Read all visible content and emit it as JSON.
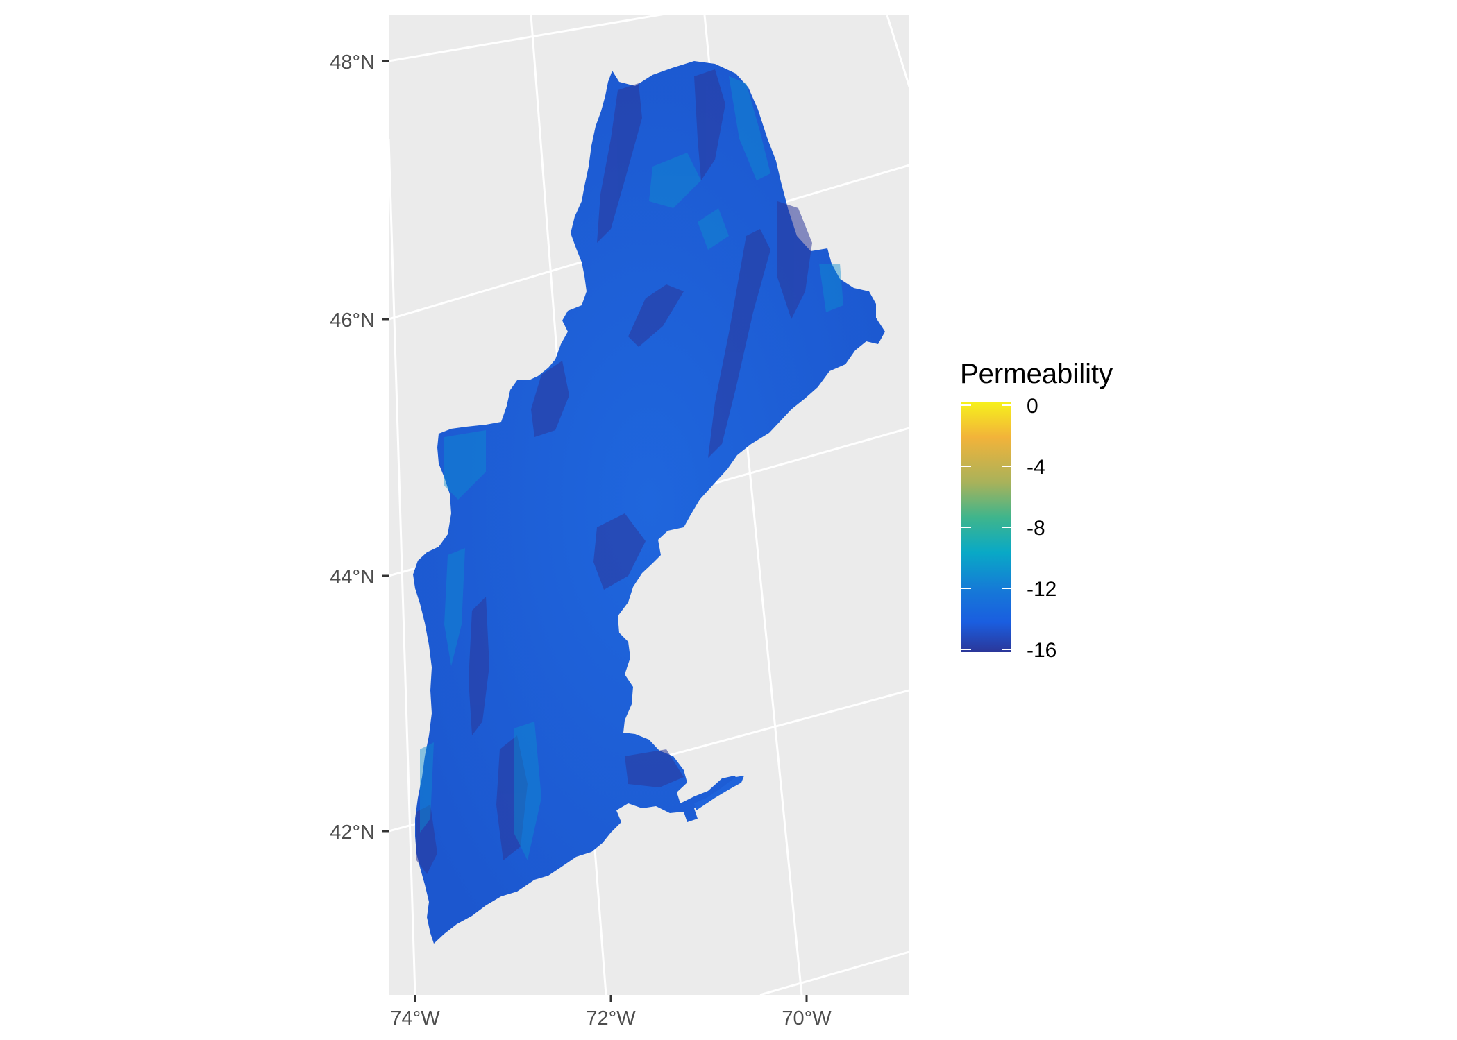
{
  "map": {
    "background": "#ebebeb",
    "gridline_color": "#ffffff",
    "land_fill": "#1f63db",
    "latitude_labels": [
      "48°N",
      "46°N",
      "44°N",
      "42°N"
    ],
    "longitude_labels": [
      "74°W",
      "72°W",
      "70°W"
    ],
    "legend": {
      "title": "Permeability",
      "labels": [
        "0",
        "-4",
        "-8",
        "-12",
        "-16"
      ],
      "gradient": [
        "#f6f01c",
        "#f2b33a",
        "#a9b25a",
        "#3fb58c",
        "#09a9c6",
        "#1677d8",
        "#1a5ee0",
        "#2b3799"
      ]
    }
  }
}
